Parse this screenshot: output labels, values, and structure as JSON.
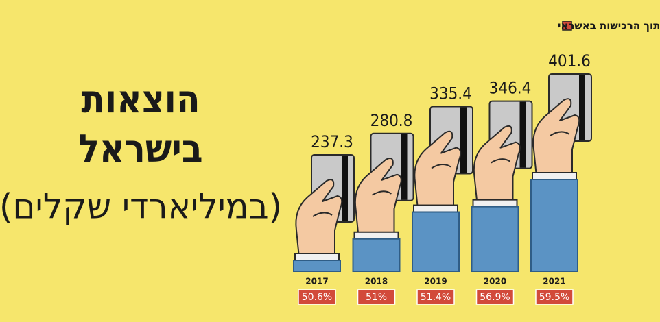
{
  "chart_data": {
    "type": "bar",
    "title": "הוצאות בישראל באשראי",
    "subtitle": "(במיליארדי שקלים)",
    "categories": [
      "2017",
      "2018",
      "2019",
      "2020",
      "2021"
    ],
    "values": [
      237.3,
      280.8,
      335.4,
      346.4,
      401.6
    ],
    "color": "#5b93c4",
    "online_share": {
      "name": "שיעור הקניות אונליין מתוך הרכישות באשראי",
      "color": "#d24a3a",
      "values": [
        50.6,
        51,
        51.4,
        56.9,
        59.5
      ],
      "value_labels": [
        "50.6%",
        "51%",
        "51.4%",
        "56.9%",
        "59.5%"
      ]
    }
  }
}
